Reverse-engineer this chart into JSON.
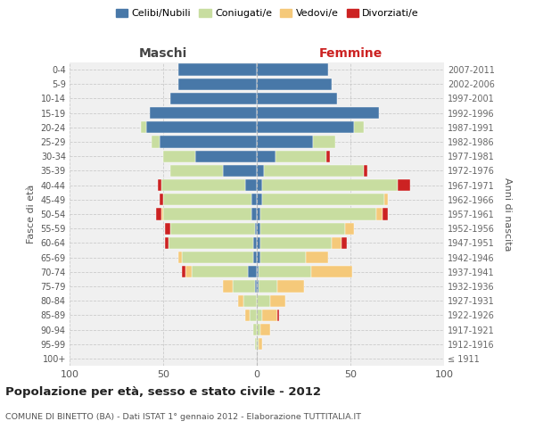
{
  "age_groups": [
    "100+",
    "95-99",
    "90-94",
    "85-89",
    "80-84",
    "75-79",
    "70-74",
    "65-69",
    "60-64",
    "55-59",
    "50-54",
    "45-49",
    "40-44",
    "35-39",
    "30-34",
    "25-29",
    "20-24",
    "15-19",
    "10-14",
    "5-9",
    "0-4"
  ],
  "birth_years": [
    "≤ 1911",
    "1912-1916",
    "1917-1921",
    "1922-1926",
    "1927-1931",
    "1932-1936",
    "1937-1941",
    "1942-1946",
    "1947-1951",
    "1952-1956",
    "1957-1961",
    "1962-1966",
    "1967-1971",
    "1972-1976",
    "1977-1981",
    "1982-1986",
    "1987-1991",
    "1992-1996",
    "1997-2001",
    "2002-2006",
    "2007-2011"
  ],
  "males": {
    "celibi": [
      0,
      0,
      0,
      0,
      0,
      1,
      5,
      2,
      2,
      1,
      3,
      3,
      6,
      18,
      33,
      52,
      59,
      57,
      46,
      42,
      42
    ],
    "coniugati": [
      0,
      1,
      2,
      4,
      7,
      12,
      30,
      38,
      45,
      45,
      47,
      47,
      45,
      28,
      17,
      4,
      3,
      0,
      0,
      0,
      0
    ],
    "vedovi": [
      0,
      0,
      0,
      2,
      3,
      5,
      3,
      2,
      0,
      0,
      1,
      0,
      0,
      0,
      0,
      0,
      0,
      0,
      0,
      0,
      0
    ],
    "divorziati": [
      0,
      0,
      0,
      0,
      0,
      0,
      2,
      0,
      2,
      3,
      3,
      2,
      2,
      0,
      0,
      0,
      0,
      0,
      0,
      0,
      0
    ]
  },
  "females": {
    "nubili": [
      0,
      0,
      0,
      0,
      0,
      1,
      1,
      2,
      2,
      2,
      2,
      3,
      3,
      4,
      10,
      30,
      52,
      65,
      43,
      40,
      38
    ],
    "coniugate": [
      0,
      1,
      2,
      3,
      7,
      10,
      28,
      24,
      38,
      45,
      62,
      65,
      72,
      53,
      27,
      12,
      5,
      0,
      0,
      0,
      0
    ],
    "vedove": [
      0,
      2,
      5,
      8,
      8,
      14,
      22,
      12,
      5,
      5,
      3,
      2,
      0,
      0,
      0,
      0,
      0,
      0,
      0,
      0,
      0
    ],
    "divorziate": [
      0,
      0,
      0,
      1,
      0,
      0,
      0,
      0,
      3,
      0,
      3,
      0,
      7,
      2,
      2,
      0,
      0,
      0,
      0,
      0,
      0
    ]
  },
  "colors": {
    "celibi": "#4878a8",
    "coniugati": "#c8dda0",
    "vedovi": "#f5c97a",
    "divorziati": "#cc2222"
  },
  "xlim": 100,
  "title": "Popolazione per età, sesso e stato civile - 2012",
  "subtitle": "COMUNE DI BINETTO (BA) - Dati ISTAT 1° gennaio 2012 - Elaborazione TUTTITALIA.IT",
  "ylabel_left": "Fasce di età",
  "ylabel_right": "Anni di nascita",
  "xlabel_left": "Maschi",
  "xlabel_right": "Femmine",
  "legend_labels": [
    "Celibi/Nubili",
    "Coniugati/e",
    "Vedovi/e",
    "Divorziati/e"
  ],
  "background_color": "#ffffff",
  "axes_bg": "#f0f0f0"
}
